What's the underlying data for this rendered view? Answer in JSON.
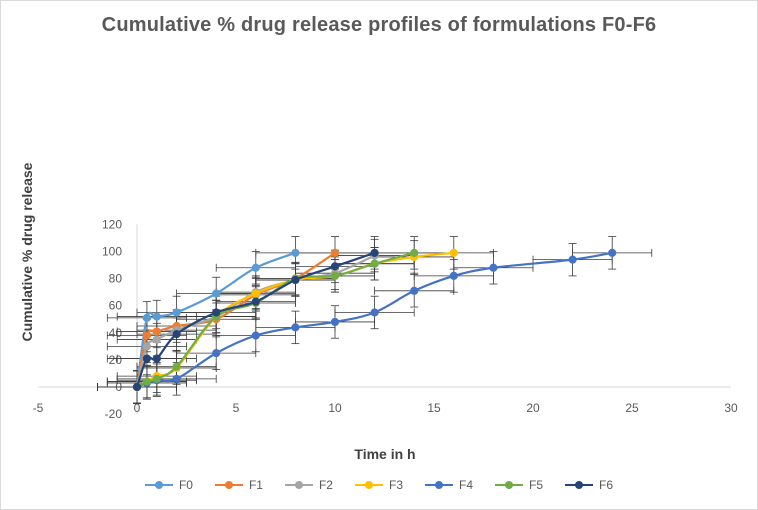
{
  "chart_data": {
    "type": "line",
    "title": "Cumulative % drug release profiles of formulations  F0-F6",
    "xlabel": "Time in h",
    "ylabel": "Cumulative % drug release",
    "xlim": [
      -5,
      30
    ],
    "ylim": [
      -20,
      120
    ],
    "xticks": [
      -5,
      0,
      5,
      10,
      15,
      20,
      25,
      30
    ],
    "yticks": [
      -20,
      0,
      20,
      40,
      60,
      80,
      100,
      120
    ],
    "grid": false,
    "legend_position": "bottom",
    "error_bars": "fixed x ±2 h, y ±12 %",
    "series": [
      {
        "name": "F0",
        "color": "#5b9bd5",
        "x": [
          0,
          0.5,
          1,
          2,
          4,
          6,
          8
        ],
        "y": [
          0,
          51,
          52,
          55,
          69,
          88,
          99
        ]
      },
      {
        "name": "F1",
        "color": "#ed7d31",
        "x": [
          0,
          0.5,
          1,
          2,
          4,
          6,
          8,
          10
        ],
        "y": [
          0,
          38,
          41,
          45,
          50,
          68,
          80,
          99
        ]
      },
      {
        "name": "F2",
        "color": "#a5a5a5",
        "x": [
          0,
          0.5,
          1,
          2,
          4,
          6,
          8,
          10,
          12
        ],
        "y": [
          0,
          30,
          35,
          42,
          52,
          70,
          79,
          84,
          97
        ]
      },
      {
        "name": "F3",
        "color": "#ffc000",
        "x": [
          0,
          0.5,
          1,
          2,
          4,
          6,
          8,
          10,
          12,
          14,
          16
        ],
        "y": [
          0,
          4,
          8,
          14,
          52,
          69,
          79,
          82,
          91,
          96,
          99
        ]
      },
      {
        "name": "F4",
        "color": "#4472c4",
        "x": [
          0,
          0.5,
          1,
          2,
          4,
          6,
          8,
          10,
          12,
          14,
          16,
          18,
          22,
          24
        ],
        "y": [
          0,
          3,
          5,
          6,
          25,
          38,
          44,
          48,
          55,
          71,
          82,
          88,
          94,
          99
        ]
      },
      {
        "name": "F5",
        "color": "#70ad47",
        "x": [
          0,
          0.5,
          1,
          2,
          4,
          6,
          8,
          10,
          12,
          14
        ],
        "y": [
          0,
          4,
          6,
          15,
          52,
          62,
          80,
          82,
          91,
          99
        ]
      },
      {
        "name": "F6",
        "color": "#264478",
        "x": [
          0,
          0.5,
          1,
          2,
          4,
          6,
          8,
          10,
          12
        ],
        "y": [
          0,
          21,
          21,
          39,
          55,
          63,
          79,
          89,
          99
        ]
      }
    ]
  }
}
